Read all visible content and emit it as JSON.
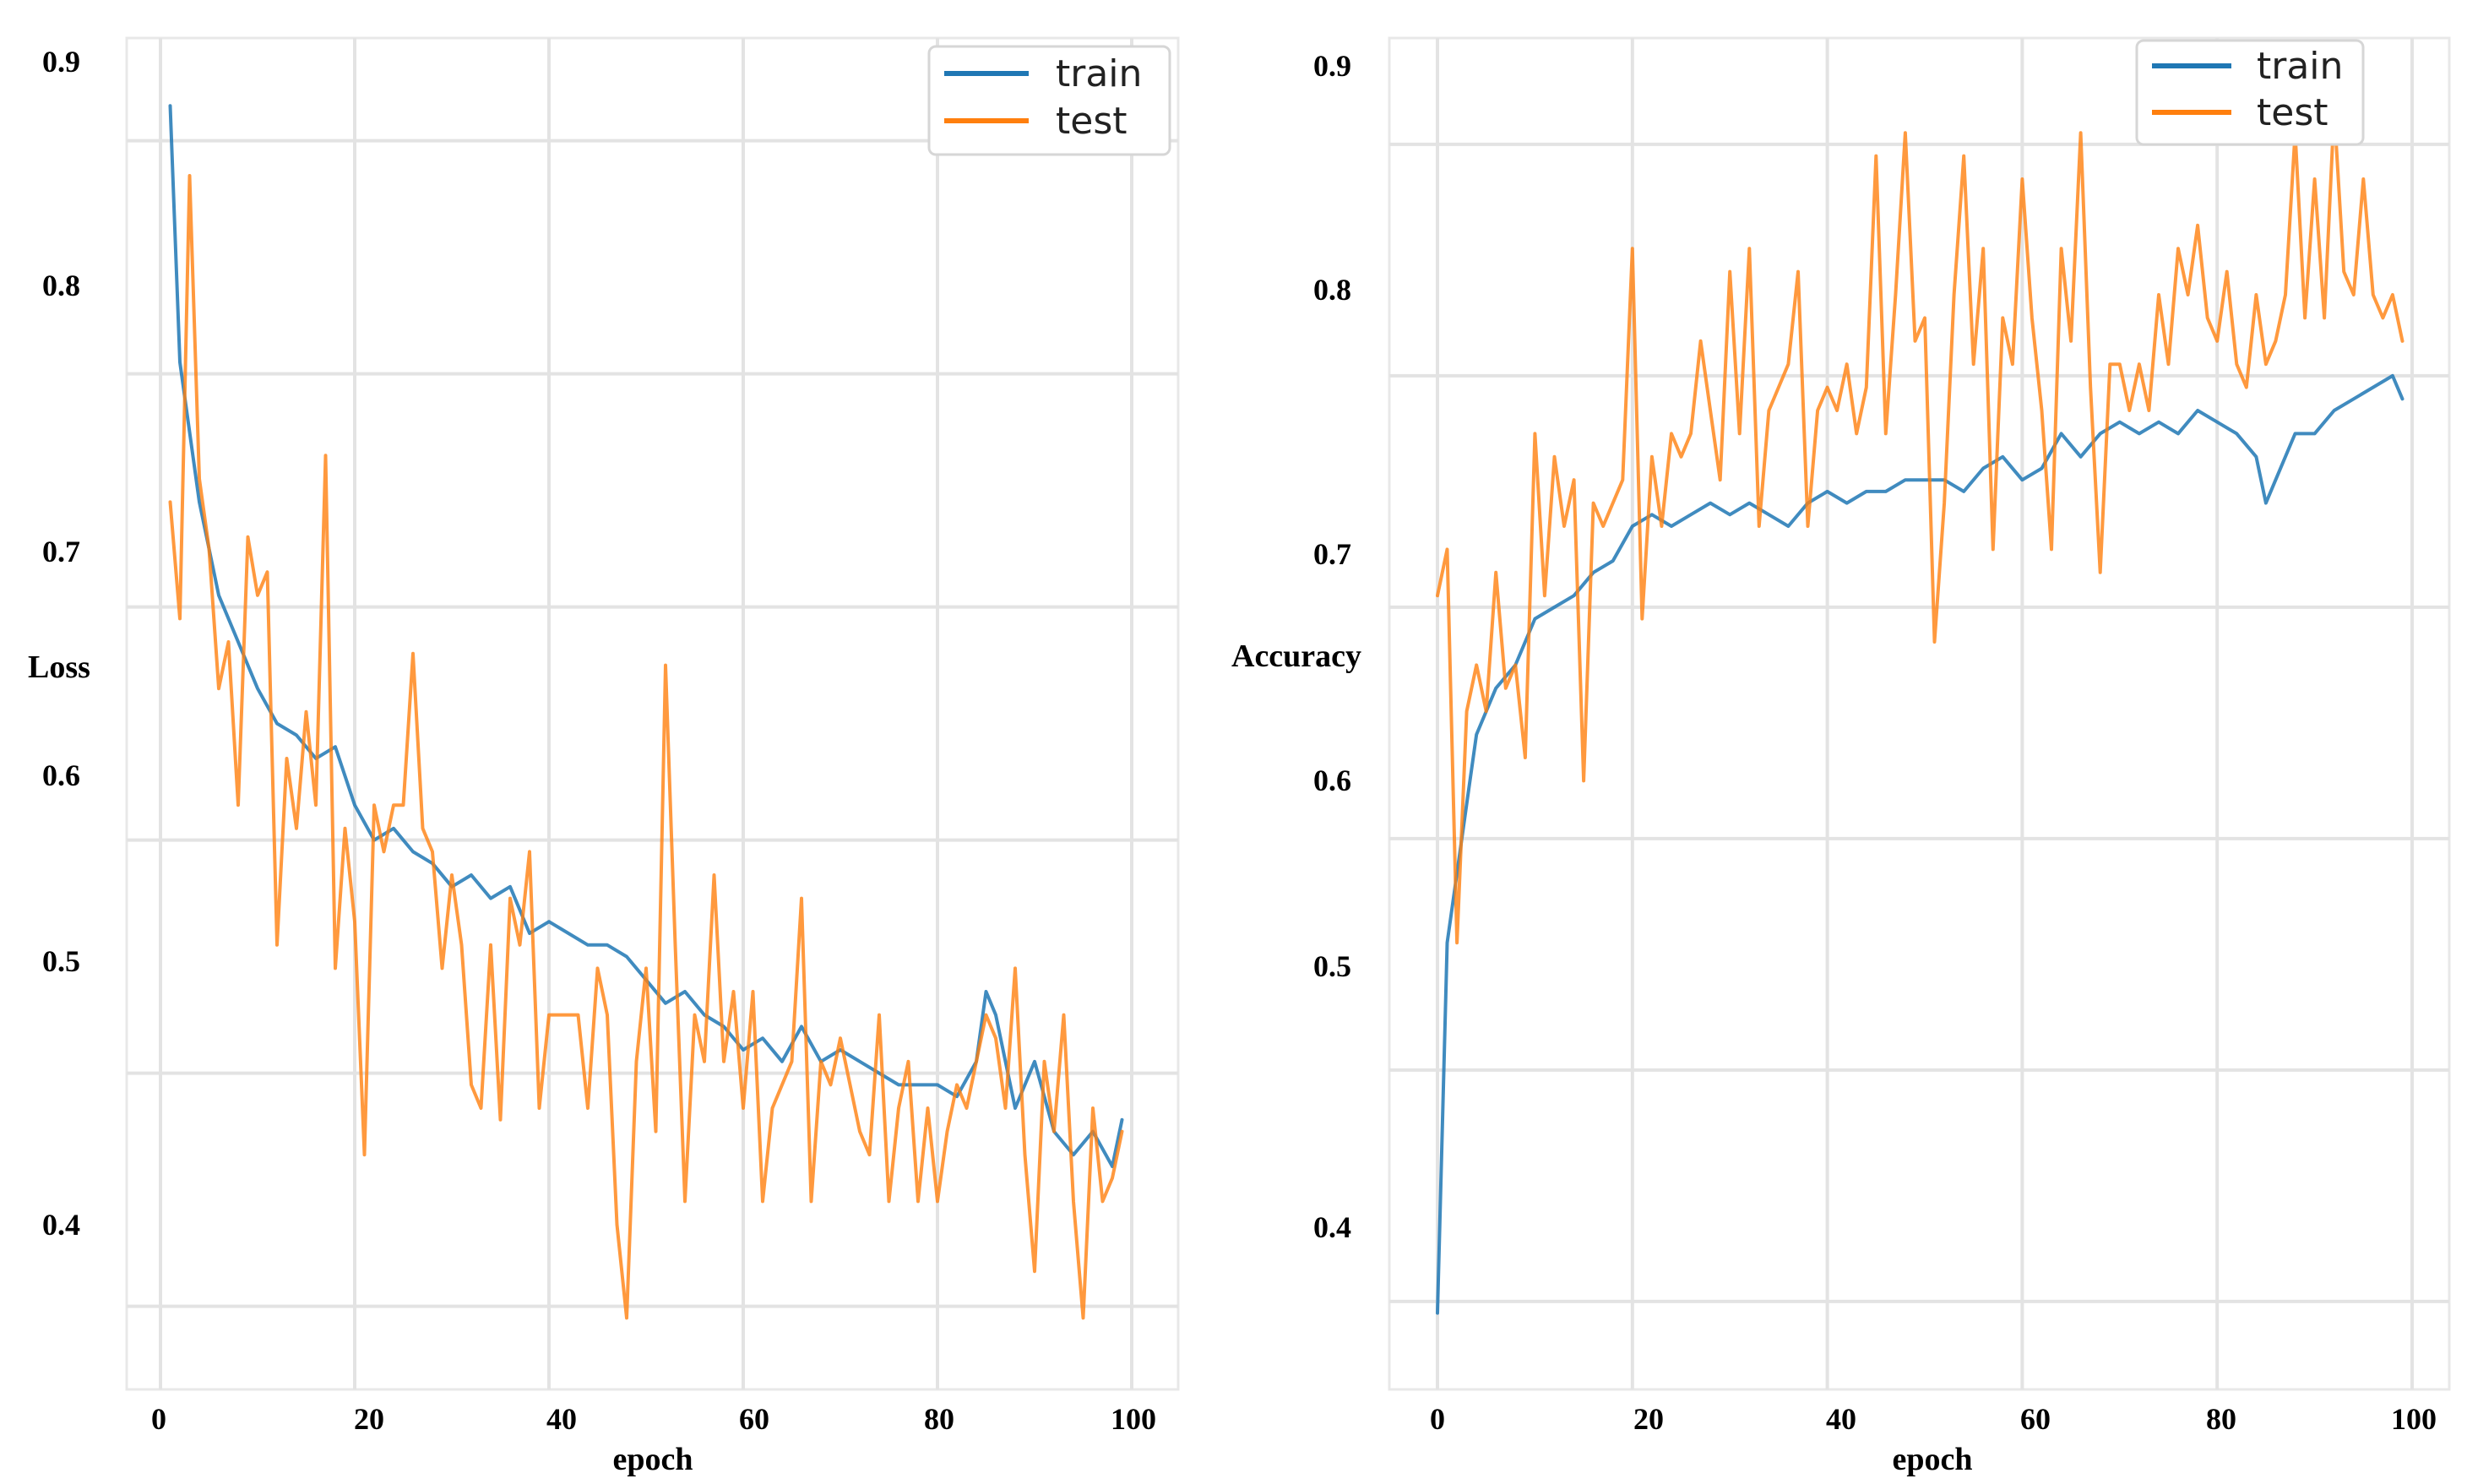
{
  "chart_data": [
    {
      "type": "line",
      "title": "",
      "xlabel": "epoch",
      "ylabel": "Loss",
      "xlim": [
        -5,
        105
      ],
      "ylim": [
        0.33,
        0.92
      ],
      "xticks": [
        0,
        20,
        40,
        60,
        80,
        100
      ],
      "xtick_labels": [
        "0",
        "20",
        "40",
        "60",
        "80",
        "100"
      ],
      "yticks": [
        0.4,
        0.5,
        0.6,
        0.7,
        0.8,
        0.9
      ],
      "ytick_labels": [
        "0.4",
        "0.5",
        "0.6",
        "0.7",
        "0.8",
        "0.9"
      ],
      "grid": true,
      "legend": "top-right",
      "series": [
        {
          "name": "train",
          "color": "#1f77b4",
          "x": [
            1,
            2,
            3,
            4,
            5,
            6,
            8,
            10,
            12,
            14,
            16,
            18,
            20,
            22,
            24,
            26,
            28,
            30,
            32,
            34,
            36,
            38,
            40,
            42,
            44,
            46,
            48,
            50,
            52,
            54,
            56,
            58,
            60,
            62,
            64,
            66,
            68,
            70,
            72,
            74,
            76,
            78,
            80,
            82,
            84,
            85,
            86,
            88,
            90,
            92,
            94,
            96,
            98,
            99
          ],
          "values": [
            0.88,
            0.77,
            0.74,
            0.71,
            0.69,
            0.67,
            0.65,
            0.63,
            0.615,
            0.61,
            0.6,
            0.605,
            0.58,
            0.565,
            0.57,
            0.56,
            0.555,
            0.545,
            0.55,
            0.54,
            0.545,
            0.525,
            0.53,
            0.525,
            0.52,
            0.52,
            0.515,
            0.505,
            0.495,
            0.5,
            0.49,
            0.485,
            0.475,
            0.48,
            0.47,
            0.485,
            0.47,
            0.475,
            0.47,
            0.465,
            0.46,
            0.46,
            0.46,
            0.455,
            0.47,
            0.5,
            0.49,
            0.45,
            0.47,
            0.44,
            0.43,
            0.44,
            0.425,
            0.445
          ]
        },
        {
          "name": "test",
          "color": "#ff7f0e",
          "x": [
            1,
            2,
            3,
            4,
            5,
            6,
            7,
            8,
            9,
            10,
            11,
            12,
            13,
            14,
            15,
            16,
            17,
            18,
            19,
            20,
            21,
            22,
            23,
            24,
            25,
            26,
            27,
            28,
            29,
            30,
            31,
            32,
            33,
            34,
            35,
            36,
            37,
            38,
            39,
            40,
            41,
            42,
            43,
            44,
            45,
            46,
            47,
            48,
            49,
            50,
            51,
            52,
            53,
            54,
            55,
            56,
            57,
            58,
            59,
            60,
            61,
            62,
            63,
            64,
            65,
            66,
            67,
            68,
            69,
            70,
            71,
            72,
            73,
            74,
            75,
            76,
            77,
            78,
            79,
            80,
            81,
            82,
            83,
            84,
            85,
            86,
            87,
            88,
            89,
            90,
            91,
            92,
            93,
            94,
            95,
            96,
            97,
            98,
            99
          ],
          "values": [
            0.71,
            0.66,
            0.85,
            0.72,
            0.69,
            0.63,
            0.65,
            0.58,
            0.695,
            0.67,
            0.68,
            0.52,
            0.6,
            0.57,
            0.62,
            0.58,
            0.73,
            0.51,
            0.57,
            0.53,
            0.43,
            0.58,
            0.56,
            0.58,
            0.58,
            0.645,
            0.57,
            0.56,
            0.51,
            0.55,
            0.52,
            0.46,
            0.45,
            0.52,
            0.445,
            0.54,
            0.52,
            0.56,
            0.45,
            0.49,
            0.49,
            0.49,
            0.49,
            0.45,
            0.51,
            0.49,
            0.4,
            0.36,
            0.47,
            0.51,
            0.44,
            0.64,
            0.52,
            0.41,
            0.49,
            0.47,
            0.55,
            0.47,
            0.5,
            0.45,
            0.5,
            0.41,
            0.45,
            0.46,
            0.47,
            0.54,
            0.41,
            0.47,
            0.46,
            0.48,
            0.46,
            0.44,
            0.43,
            0.49,
            0.41,
            0.45,
            0.47,
            0.41,
            0.45,
            0.41,
            0.44,
            0.46,
            0.45,
            0.47,
            0.49,
            0.48,
            0.45,
            0.51,
            0.43,
            0.38,
            0.47,
            0.44,
            0.49,
            0.41,
            0.36,
            0.45,
            0.41,
            0.42,
            0.44
          ]
        }
      ]
    },
    {
      "type": "line",
      "title": "",
      "xlabel": "epoch",
      "ylabel": "Accuracy",
      "xlim": [
        -5,
        103
      ],
      "ylim": [
        0.34,
        0.92
      ],
      "xticks": [
        0,
        20,
        40,
        60,
        80,
        100
      ],
      "xtick_labels": [
        "0",
        "20",
        "40",
        "60",
        "80",
        "100"
      ],
      "yticks": [
        0.4,
        0.5,
        0.6,
        0.7,
        0.8,
        0.9
      ],
      "ytick_labels": [
        "0.4",
        "0.5",
        "0.6",
        "0.7",
        "0.8",
        "0.9"
      ],
      "grid": true,
      "legend": "top-right",
      "series": [
        {
          "name": "train",
          "color": "#1f77b4",
          "x": [
            0,
            1,
            2,
            3,
            4,
            6,
            8,
            10,
            12,
            14,
            16,
            18,
            20,
            22,
            24,
            26,
            28,
            30,
            32,
            34,
            36,
            38,
            40,
            42,
            44,
            46,
            48,
            50,
            52,
            54,
            56,
            58,
            60,
            62,
            64,
            66,
            68,
            70,
            72,
            74,
            76,
            78,
            80,
            82,
            84,
            85,
            86,
            88,
            90,
            92,
            94,
            96,
            98,
            99
          ],
          "values": [
            0.36,
            0.52,
            0.55,
            0.58,
            0.61,
            0.63,
            0.64,
            0.66,
            0.665,
            0.67,
            0.68,
            0.685,
            0.7,
            0.705,
            0.7,
            0.705,
            0.71,
            0.705,
            0.71,
            0.705,
            0.7,
            0.71,
            0.715,
            0.71,
            0.715,
            0.715,
            0.72,
            0.72,
            0.72,
            0.715,
            0.725,
            0.73,
            0.72,
            0.725,
            0.74,
            0.73,
            0.74,
            0.745,
            0.74,
            0.745,
            0.74,
            0.75,
            0.745,
            0.74,
            0.73,
            0.71,
            0.72,
            0.74,
            0.74,
            0.75,
            0.755,
            0.76,
            0.765,
            0.755
          ]
        },
        {
          "name": "test",
          "color": "#ff7f0e",
          "x": [
            0,
            1,
            2,
            3,
            4,
            5,
            6,
            7,
            8,
            9,
            10,
            11,
            12,
            13,
            14,
            15,
            16,
            17,
            18,
            19,
            20,
            21,
            22,
            23,
            24,
            25,
            26,
            27,
            28,
            29,
            30,
            31,
            32,
            33,
            34,
            35,
            36,
            37,
            38,
            39,
            40,
            41,
            42,
            43,
            44,
            45,
            46,
            47,
            48,
            49,
            50,
            51,
            52,
            53,
            54,
            55,
            56,
            57,
            58,
            59,
            60,
            61,
            62,
            63,
            64,
            65,
            66,
            67,
            68,
            69,
            70,
            71,
            72,
            73,
            74,
            75,
            76,
            77,
            78,
            79,
            80,
            81,
            82,
            83,
            84,
            85,
            86,
            87,
            88,
            89,
            90,
            91,
            92,
            93,
            94,
            95,
            96,
            97,
            98,
            99
          ],
          "values": [
            0.67,
            0.69,
            0.52,
            0.62,
            0.64,
            0.62,
            0.68,
            0.63,
            0.64,
            0.6,
            0.74,
            0.67,
            0.73,
            0.7,
            0.72,
            0.59,
            0.71,
            0.7,
            0.71,
            0.72,
            0.82,
            0.66,
            0.73,
            0.7,
            0.74,
            0.73,
            0.74,
            0.78,
            0.75,
            0.72,
            0.81,
            0.74,
            0.82,
            0.7,
            0.75,
            0.76,
            0.77,
            0.81,
            0.7,
            0.75,
            0.76,
            0.75,
            0.77,
            0.74,
            0.76,
            0.86,
            0.74,
            0.8,
            0.87,
            0.78,
            0.79,
            0.65,
            0.71,
            0.8,
            0.86,
            0.77,
            0.82,
            0.69,
            0.79,
            0.77,
            0.85,
            0.79,
            0.75,
            0.69,
            0.82,
            0.78,
            0.87,
            0.76,
            0.68,
            0.77,
            0.77,
            0.75,
            0.77,
            0.75,
            0.8,
            0.77,
            0.82,
            0.8,
            0.83,
            0.79,
            0.78,
            0.81,
            0.77,
            0.76,
            0.8,
            0.77,
            0.78,
            0.8,
            0.87,
            0.79,
            0.85,
            0.79,
            0.88,
            0.81,
            0.8,
            0.85,
            0.8,
            0.79,
            0.8,
            0.78
          ]
        }
      ]
    }
  ]
}
